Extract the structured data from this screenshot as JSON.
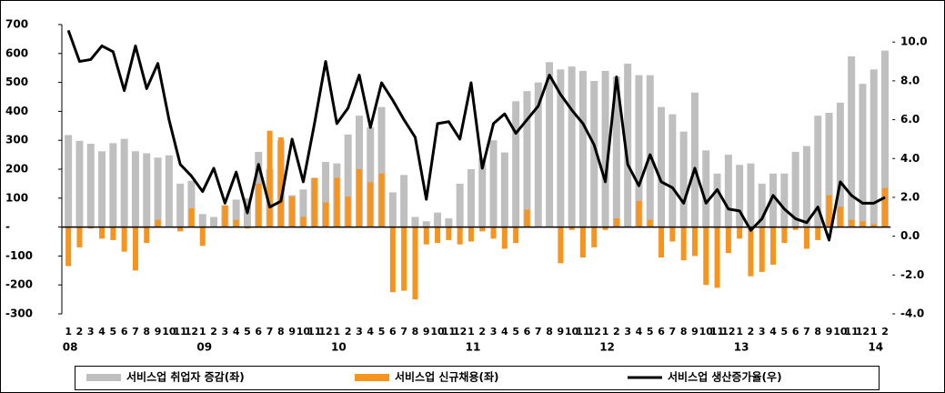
{
  "chart_data": {
    "type": "bar-line",
    "categories": [
      "1",
      "2",
      "3",
      "4",
      "5",
      "6",
      "7",
      "8",
      "9",
      "10",
      "11",
      "12",
      "1",
      "2",
      "3",
      "4",
      "5",
      "6",
      "7",
      "8",
      "9",
      "10",
      "11",
      "12",
      "1",
      "2",
      "3",
      "4",
      "5",
      "6",
      "7",
      "8",
      "9",
      "10",
      "11",
      "12",
      "1",
      "2",
      "3",
      "4",
      "5",
      "6",
      "7",
      "8",
      "9",
      "10",
      "11",
      "12",
      "1",
      "2",
      "3",
      "4",
      "5",
      "6",
      "7",
      "8",
      "9",
      "10",
      "11",
      "12",
      "1",
      "2",
      "3",
      "4",
      "5",
      "6",
      "7",
      "8",
      "9",
      "10",
      "11",
      "12",
      "1",
      "2"
    ],
    "years": [
      "08",
      "09",
      "10",
      "11",
      "12",
      "13",
      "14"
    ],
    "series": [
      {
        "name": "서비스업 취업자 증감(좌)",
        "color": "#bfbfbf",
        "kind": "bar",
        "values": [
          318,
          298,
          288,
          262,
          290,
          305,
          262,
          255,
          240,
          248,
          150,
          160,
          45,
          35,
          75,
          95,
          100,
          260,
          200,
          300,
          110,
          130,
          170,
          225,
          220,
          320,
          385,
          345,
          415,
          120,
          180,
          35,
          20,
          50,
          30,
          150,
          200,
          240,
          300,
          258,
          435,
          470,
          500,
          570,
          545,
          555,
          540,
          505,
          540,
          520,
          565,
          525,
          525,
          415,
          390,
          330,
          465,
          265,
          185,
          250,
          215,
          220,
          150,
          185,
          185,
          260,
          280,
          385,
          395,
          430,
          590,
          495,
          545,
          610
        ]
      },
      {
        "name": "서비스업 신규채용(좌)",
        "color": "#f7941d",
        "kind": "bar",
        "values": [
          -135,
          -70,
          -5,
          -40,
          -45,
          -85,
          -150,
          -55,
          25,
          0,
          -15,
          65,
          -65,
          0,
          75,
          25,
          -5,
          150,
          333,
          310,
          105,
          35,
          170,
          85,
          170,
          105,
          200,
          155,
          185,
          -225,
          -220,
          -250,
          -60,
          -55,
          -45,
          -60,
          -50,
          -15,
          -40,
          -75,
          -55,
          60,
          0,
          0,
          -125,
          -10,
          -105,
          -70,
          -10,
          30,
          0,
          90,
          25,
          -105,
          -50,
          -115,
          -100,
          -200,
          -210,
          -90,
          -40,
          -170,
          -155,
          -130,
          -55,
          -10,
          -75,
          -45,
          110,
          70,
          25,
          20,
          10,
          135
        ]
      },
      {
        "name": "서비스업 생산증가율(우)",
        "color": "#000000",
        "kind": "line",
        "axis": "y2",
        "values": [
          10.6,
          9.0,
          9.1,
          9.8,
          9.5,
          7.5,
          9.8,
          7.6,
          8.9,
          6.0,
          3.7,
          3.1,
          2.3,
          3.5,
          1.7,
          3.3,
          1.2,
          3.7,
          1.5,
          1.8,
          5.0,
          2.8,
          5.8,
          9.0,
          5.8,
          6.6,
          8.3,
          5.6,
          7.9,
          7.0,
          6.0,
          5.1,
          1.9,
          5.8,
          5.9,
          5.0,
          7.9,
          3.5,
          5.8,
          6.3,
          5.3,
          6.0,
          6.7,
          8.3,
          7.3,
          6.5,
          5.8,
          4.7,
          2.8,
          8.2,
          3.7,
          2.6,
          4.2,
          2.8,
          2.5,
          1.7,
          3.5,
          1.7,
          2.4,
          1.4,
          1.3,
          0.3,
          0.9,
          2.1,
          1.4,
          0.9,
          0.7,
          1.5,
          -0.2,
          2.8,
          2.1,
          1.7,
          1.7,
          2.0
        ]
      }
    ],
    "ylim": [
      -300,
      700
    ],
    "yticks": [
      -300,
      -200,
      -100,
      {
        "value": 0,
        "label": "-"
      },
      100,
      200,
      300,
      400,
      500,
      600,
      700
    ],
    "y2lim": [
      -4,
      10.9
    ],
    "y2ticks": [
      {
        "value": -4,
        "label": "-4.0"
      },
      {
        "value": -2,
        "label": "-2.0"
      },
      {
        "value": 0,
        "label": "0.0"
      },
      {
        "value": 2,
        "label": "2.0"
      },
      {
        "value": 4,
        "label": "4.0"
      },
      {
        "value": 6,
        "label": "6.0"
      },
      {
        "value": 8,
        "label": "8.0"
      },
      {
        "value": 10,
        "label": "10.0"
      }
    ],
    "grid": false,
    "legend": "bottom"
  }
}
